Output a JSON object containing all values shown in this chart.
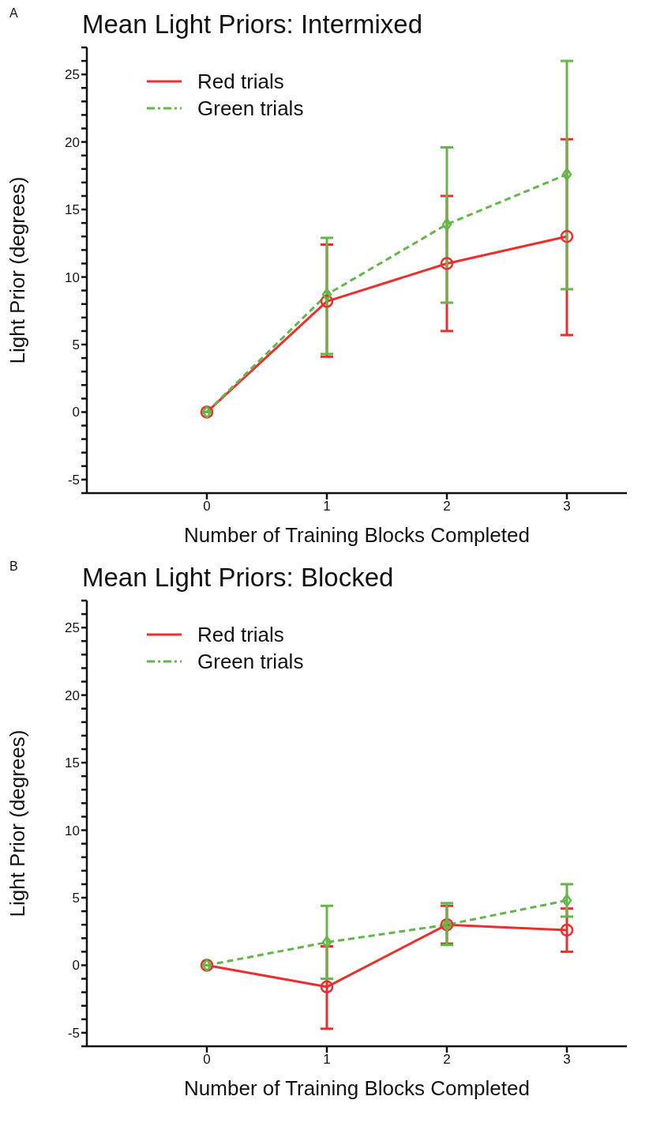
{
  "chart_data": [
    {
      "type": "line",
      "title": "Mean Light Priors: Intermixed",
      "annotations": [
        "A"
      ],
      "xlabel": "Number of Training Blocks Completed",
      "ylabel": "Light Prior (degrees)",
      "x": [
        0,
        1,
        2,
        3
      ],
      "xlim": [
        -1,
        3.5
      ],
      "xticks": [
        0,
        1,
        2,
        3
      ],
      "ylim": [
        -6,
        27
      ],
      "yticks": [
        {
          "value": -6,
          "label": null
        },
        -5,
        {
          "value": -4,
          "label": null
        },
        {
          "value": -3,
          "label": null
        },
        {
          "value": -2,
          "label": null
        },
        {
          "value": -1,
          "label": null
        },
        0,
        {
          "value": 1,
          "label": null
        },
        {
          "value": 2,
          "label": null
        },
        {
          "value": 3,
          "label": null
        },
        {
          "value": 4,
          "label": null
        },
        5,
        {
          "value": 6,
          "label": null
        },
        {
          "value": 7,
          "label": null
        },
        {
          "value": 8,
          "label": null
        },
        {
          "value": 9,
          "label": null
        },
        10,
        {
          "value": 11,
          "label": null
        },
        {
          "value": 12,
          "label": null
        },
        {
          "value": 13,
          "label": null
        },
        {
          "value": 14,
          "label": null
        },
        15,
        {
          "value": 16,
          "label": null
        },
        {
          "value": 17,
          "label": null
        },
        {
          "value": 18,
          "label": null
        },
        {
          "value": 19,
          "label": null
        },
        20,
        {
          "value": 21,
          "label": null
        },
        {
          "value": 22,
          "label": null
        },
        {
          "value": 23,
          "label": null
        },
        {
          "value": 24,
          "label": null
        },
        25,
        {
          "value": 26,
          "label": null
        },
        {
          "value": 27,
          "label": null
        }
      ],
      "grid": false,
      "legend": "top left",
      "series": [
        {
          "name": "Red trials",
          "color": "#ee2d2d",
          "values": [
            0,
            8.2,
            11.0,
            13.0
          ],
          "errors": [
            null,
            [
              4.1,
              12.4
            ],
            [
              6.0,
              16.0
            ],
            [
              5.7,
              20.2
            ]
          ],
          "marker": "circle",
          "line_style": "solid"
        },
        {
          "name": "Green trials",
          "color": "#62b846",
          "values": [
            0,
            8.7,
            13.9,
            17.6
          ],
          "errors": [
            null,
            [
              4.3,
              12.9
            ],
            [
              8.1,
              19.6
            ],
            [
              9.1,
              26.0
            ]
          ],
          "marker": "diamond",
          "line_style": "dashed"
        }
      ]
    },
    {
      "type": "line",
      "title": "Mean Light Priors: Blocked",
      "annotations": [
        "B"
      ],
      "xlabel": "Number of Training Blocks Completed",
      "ylabel": "Light Prior (degrees)",
      "x": [
        0,
        1,
        2,
        3
      ],
      "xlim": [
        -1,
        3.5
      ],
      "xticks": [
        0,
        1,
        2,
        3
      ],
      "ylim": [
        -6,
        27
      ],
      "yticks": [
        {
          "value": -6,
          "label": null
        },
        -5,
        {
          "value": -4,
          "label": null
        },
        {
          "value": -3,
          "label": null
        },
        {
          "value": -2,
          "label": null
        },
        {
          "value": -1,
          "label": null
        },
        0,
        {
          "value": 1,
          "label": null
        },
        {
          "value": 2,
          "label": null
        },
        {
          "value": 3,
          "label": null
        },
        {
          "value": 4,
          "label": null
        },
        5,
        {
          "value": 6,
          "label": null
        },
        {
          "value": 7,
          "label": null
        },
        {
          "value": 8,
          "label": null
        },
        {
          "value": 9,
          "label": null
        },
        10,
        {
          "value": 11,
          "label": null
        },
        {
          "value": 12,
          "label": null
        },
        {
          "value": 13,
          "label": null
        },
        {
          "value": 14,
          "label": null
        },
        15,
        {
          "value": 16,
          "label": null
        },
        {
          "value": 17,
          "label": null
        },
        {
          "value": 18,
          "label": null
        },
        {
          "value": 19,
          "label": null
        },
        20,
        {
          "value": 21,
          "label": null
        },
        {
          "value": 22,
          "label": null
        },
        {
          "value": 23,
          "label": null
        },
        {
          "value": 24,
          "label": null
        },
        25,
        {
          "value": 26,
          "label": null
        },
        {
          "value": 27,
          "label": null
        }
      ],
      "grid": false,
      "legend": "top left",
      "series": [
        {
          "name": "Red trials",
          "color": "#ee2d2d",
          "values": [
            0,
            -1.6,
            3.0,
            2.6
          ],
          "errors": [
            null,
            [
              -4.7,
              1.4
            ],
            [
              1.6,
              4.4
            ],
            [
              1.0,
              4.2
            ]
          ],
          "marker": "circle",
          "line_style": "solid"
        },
        {
          "name": "Green trials",
          "color": "#62b846",
          "values": [
            0,
            1.7,
            3.0,
            4.8
          ],
          "errors": [
            null,
            [
              -1.0,
              4.4
            ],
            [
              1.5,
              4.6
            ],
            [
              3.6,
              6.0
            ]
          ],
          "marker": "diamond",
          "line_style": "dashed"
        }
      ]
    }
  ]
}
